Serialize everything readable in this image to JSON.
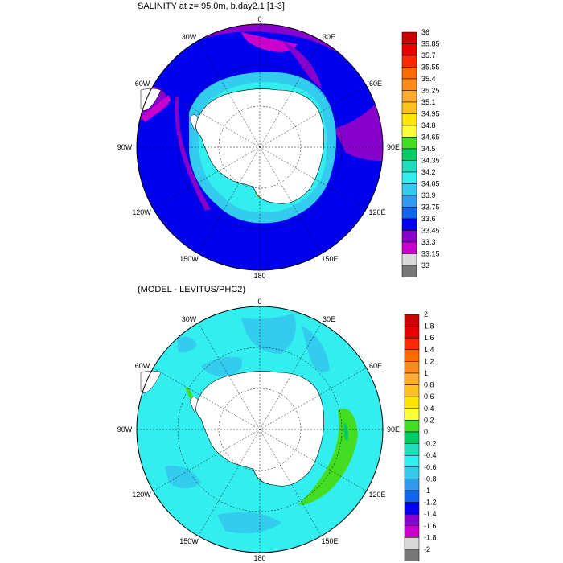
{
  "panels": [
    {
      "title": "SALINITY at z=  95.0m, b.day2.1 [1-3]",
      "lon_labels": [
        "0",
        "30E",
        "60E",
        "90E",
        "120E",
        "150E",
        "180",
        "150W",
        "120W",
        "90W",
        "60W",
        "30W"
      ],
      "colorbar": {
        "labels": [
          "36",
          "35.85",
          "35.7",
          "35.55",
          "35.4",
          "35.25",
          "35.1",
          "34.95",
          "34.8",
          "34.65",
          "34.5",
          "34.35",
          "34.2",
          "34.05",
          "33.9",
          "33.75",
          "33.6",
          "33.45",
          "33.3",
          "33.15",
          "33"
        ],
        "colors": [
          "#cc0000",
          "#e80000",
          "#ff2a00",
          "#ff6a00",
          "#ff8c1a",
          "#ffaa33",
          "#ffc21a",
          "#ffe600",
          "#ffff33",
          "#44dd22",
          "#00cc66",
          "#22ddbb",
          "#33eeee",
          "#33ccee",
          "#3399ee",
          "#1166ee",
          "#0000ee",
          "#8800cc",
          "#cc00cc",
          "#d8d8d8",
          "#777777"
        ]
      }
    },
    {
      "title": "(MODEL - LEVITUS/PHC2)",
      "lon_labels": [
        "0",
        "30E",
        "60E",
        "90E",
        "120E",
        "150E",
        "180",
        "150W",
        "120W",
        "90W",
        "60W",
        "30W"
      ],
      "colorbar": {
        "labels": [
          "2",
          "1.8",
          "1.6",
          "1.4",
          "1.2",
          "1",
          "0.8",
          "0.6",
          "0.4",
          "0.2",
          "0",
          "-0.2",
          "-0.4",
          "-0.6",
          "-0.8",
          "-1",
          "-1.2",
          "-1.4",
          "-1.6",
          "-1.8",
          "-2"
        ],
        "colors": [
          "#cc0000",
          "#e80000",
          "#ff2a00",
          "#ff6a00",
          "#ff8c1a",
          "#ffaa33",
          "#ffc21a",
          "#ffe600",
          "#ffff33",
          "#44dd22",
          "#00cc66",
          "#22ddbb",
          "#33eeee",
          "#33ccee",
          "#3399ee",
          "#1166ee",
          "#0000ee",
          "#8800cc",
          "#cc00cc",
          "#d8d8d8",
          "#777777"
        ]
      }
    }
  ]
}
